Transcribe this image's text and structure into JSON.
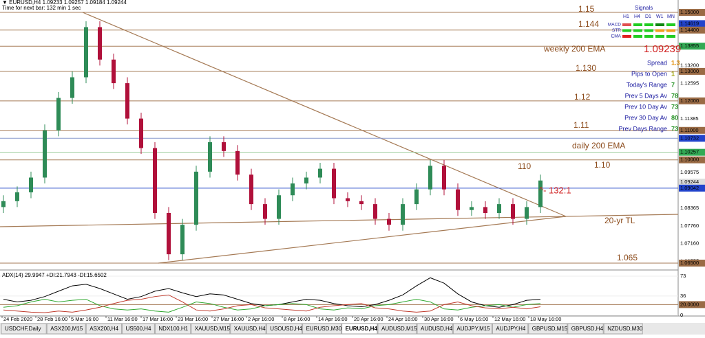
{
  "header": {
    "symbol_line": "▼ EURUSD,H4  1.09233 1.09257 1.09184 1.09244",
    "timer": "Time for next bar: 132 min 1 sec"
  },
  "chart_data": [
    {
      "type": "candlestick",
      "up_color": "#2e8b57",
      "down_color": "#b0103a",
      "open": [
        1.084,
        1.086,
        1.089,
        1.094,
        1.11,
        1.121,
        1.128,
        1.145,
        1.134,
        1.126,
        1.114,
        1.104,
        1.082,
        1.068,
        1.078,
        1.096,
        1.106,
        1.103,
        1.095,
        1.085,
        1.08,
        1.088,
        1.092,
        1.094,
        1.097,
        1.087,
        1.086,
        1.085,
        1.08,
        1.078,
        1.085,
        1.09,
        1.098,
        1.09,
        1.083,
        1.084,
        1.082,
        1.085,
        1.08,
        1.084
      ],
      "high": [
        1.088,
        1.091,
        1.096,
        1.112,
        1.123,
        1.13,
        1.147,
        1.147,
        1.136,
        1.128,
        1.116,
        1.106,
        1.084,
        1.08,
        1.098,
        1.108,
        1.108,
        1.105,
        1.097,
        1.087,
        1.09,
        1.094,
        1.096,
        1.099,
        1.099,
        1.089,
        1.088,
        1.087,
        1.082,
        1.087,
        1.092,
        1.1,
        1.1,
        1.092,
        1.086,
        1.086,
        1.087,
        1.087,
        1.086,
        1.095
      ],
      "low": [
        1.082,
        1.084,
        1.087,
        1.092,
        1.108,
        1.119,
        1.126,
        1.132,
        1.124,
        1.112,
        1.102,
        1.08,
        1.066,
        1.066,
        1.076,
        1.094,
        1.101,
        1.093,
        1.083,
        1.078,
        1.078,
        1.086,
        1.09,
        1.092,
        1.085,
        1.084,
        1.083,
        1.078,
        1.076,
        1.076,
        1.083,
        1.088,
        1.088,
        1.081,
        1.081,
        1.08,
        1.08,
        1.078,
        1.078,
        1.082
      ],
      "close": [
        1.086,
        1.089,
        1.094,
        1.11,
        1.121,
        1.128,
        1.145,
        1.134,
        1.126,
        1.114,
        1.104,
        1.082,
        1.068,
        1.078,
        1.096,
        1.106,
        1.103,
        1.095,
        1.085,
        1.08,
        1.088,
        1.092,
        1.094,
        1.097,
        1.087,
        1.086,
        1.085,
        1.08,
        1.078,
        1.085,
        1.09,
        1.098,
        1.09,
        1.083,
        1.084,
        1.082,
        1.085,
        1.08,
        1.084,
        1.093
      ],
      "ylim": [
        1.0629,
        1.1542
      ],
      "yticks": [
        {
          "value": 1.15,
          "label": "1.15000"
        },
        {
          "value": 1.14619,
          "label": "1.14619"
        },
        {
          "value": 1.144,
          "label": "1.14400"
        },
        {
          "value": 1.13855,
          "label": "1.13855"
        },
        {
          "value": 1.132,
          "label": "1.13200"
        },
        {
          "value": 1.13,
          "label": "1.13000"
        },
        {
          "value": 1.12595,
          "label": "1.12595"
        },
        {
          "value": 1.12,
          "label": "1.12000"
        },
        {
          "value": 1.11385,
          "label": "1.11385"
        },
        {
          "value": 1.11,
          "label": "1.11000"
        },
        {
          "value": 1.10732,
          "label": "1.10732"
        },
        {
          "value": 1.10257,
          "label": "1.10257"
        },
        {
          "value": 1.1,
          "label": "1.10000"
        },
        {
          "value": 1.09575,
          "label": "1.09575"
        },
        {
          "value": 1.09244,
          "label": "1.09244"
        },
        {
          "value": 1.09042,
          "label": "1.09042"
        },
        {
          "value": 1.08365,
          "label": "1.08365"
        },
        {
          "value": 1.0776,
          "label": "1.07760"
        },
        {
          "value": 1.0716,
          "label": "1.07160"
        },
        {
          "value": 1.06555,
          "label": "1.06555"
        },
        {
          "value": 1.065,
          "label": "1.06500"
        }
      ],
      "annotations": [
        "1.15",
        "1.144",
        "weekly 200 EMA",
        "1.09239",
        "1.130",
        "1.12",
        "1.11",
        "daily 200 EMA",
        "110",
        "1.10",
        "^- 132:1",
        "20-yr TL",
        "1.065"
      ]
    },
    {
      "type": "line",
      "title": "ADX(14) 29.9947 +DI:21.7943 -DI:15.6502",
      "series": [
        {
          "name": "ADX",
          "color": "#000000",
          "values": [
            30,
            25,
            28,
            35,
            45,
            55,
            58,
            50,
            40,
            30,
            35,
            45,
            50,
            42,
            35,
            40,
            38,
            30,
            22,
            18,
            20,
            25,
            30,
            28,
            22,
            18,
            16,
            20,
            28,
            38,
            55,
            70,
            60,
            40,
            25,
            18,
            15,
            20,
            28,
            30
          ]
        },
        {
          "name": "+DI",
          "color": "#2fa82f",
          "values": [
            15,
            18,
            25,
            30,
            25,
            28,
            30,
            18,
            12,
            10,
            12,
            8,
            6,
            15,
            25,
            22,
            15,
            10,
            12,
            18,
            20,
            22,
            20,
            12,
            10,
            14,
            12,
            18,
            20,
            25,
            30,
            25,
            12,
            10,
            15,
            18,
            20,
            15,
            20,
            22
          ]
        },
        {
          "name": "-DI",
          "color": "#c0392b",
          "values": [
            10,
            8,
            6,
            5,
            8,
            6,
            10,
            15,
            22,
            28,
            30,
            35,
            38,
            25,
            10,
            8,
            12,
            18,
            20,
            14,
            12,
            10,
            8,
            15,
            18,
            20,
            22,
            14,
            12,
            8,
            6,
            8,
            20,
            25,
            18,
            14,
            12,
            15,
            12,
            16
          ]
        }
      ],
      "ylim": [
        0,
        82
      ],
      "yticks": [
        73,
        36,
        {
          "value": 20,
          "label": "20.0000"
        },
        0
      ]
    }
  ],
  "x_labels": [
    "24 Feb 2020",
    "28 Feb 16:00",
    "5 Mar 16:00",
    "11 Mar 16:00",
    "17 Mar 16:00",
    "23 Mar 16:00",
    "27 Mar 16:00",
    "2 Apr 16:00",
    "8 Apr 16:00",
    "14 Apr 16:00",
    "20 Apr 16:00",
    "24 Apr 16:00",
    "30 Apr 16:00",
    "6 May 16:00",
    "12 May 16:00",
    "18 May 16:00"
  ],
  "signals": {
    "title": "Signals",
    "columns": [
      "H1",
      "H4",
      "D1",
      "W1",
      "MN"
    ],
    "rows": [
      {
        "name": "MACD",
        "colors": [
          "#e05050",
          "#22cc22",
          "#22cc22",
          "#118811",
          "#22cc22"
        ]
      },
      {
        "name": "STR",
        "colors": [
          "#22cc22",
          "#22cc22",
          "#22cc22",
          "#f0a020",
          "#f0a020"
        ]
      },
      {
        "name": "EMA",
        "colors": [
          "#e02020",
          "#22cc22",
          "#22cc22",
          "#22cc22",
          "#22cc22"
        ]
      }
    ]
  },
  "info": [
    {
      "label": "Spread",
      "value": "1.3"
    },
    {
      "label": "Pips to Open",
      "value": "1"
    },
    {
      "label": "Today's Range",
      "value": "7"
    },
    {
      "label": "Prev 5 Days Av",
      "value": "78"
    },
    {
      "label": "Prev 10 Day Av",
      "value": "73"
    },
    {
      "label": "Prev 30 Day Av",
      "value": "80"
    },
    {
      "label": "Prev Days Range",
      "value": "73"
    }
  ],
  "tabs": [
    "USDCHF,Daily",
    "ASX200,M15",
    "ASX200,H4",
    "US500,H4",
    "NDX100,H1",
    "XAUUSD,M15",
    "XAUUSD,H4",
    "USOUSD,H4",
    "EURUSD,M30",
    "EURUSD,H4",
    "AUDUSD,M15",
    "AUDUSD,H4",
    "AUDJPY,M15",
    "AUDJPY,H4",
    "GBPUSD,M15",
    "GBPUSD,H4",
    "NZDUSD,M30"
  ],
  "active_tab": 9
}
